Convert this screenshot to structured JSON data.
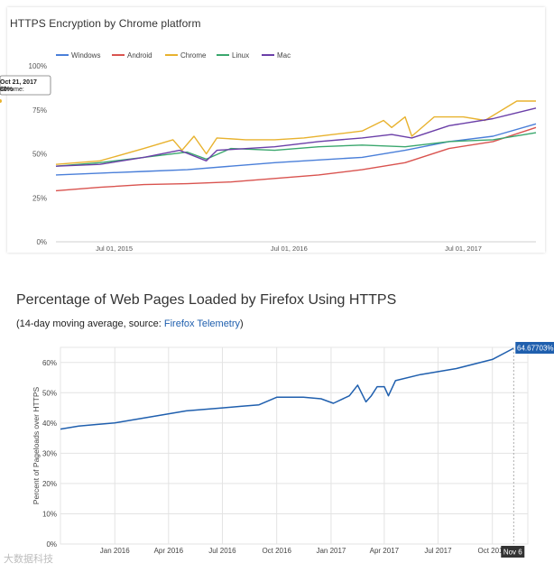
{
  "chart_data": [
    {
      "type": "line",
      "title": "HTTPS Encryption by Chrome platform",
      "xlabel": "",
      "ylabel": "",
      "x_tick_labels": [
        "Jul 01, 2015",
        "Jul 01, 2016",
        "Jul 01, 2017"
      ],
      "y_tick_labels": [
        "0%",
        "25%",
        "50%",
        "75%",
        "100%"
      ],
      "ylim": [
        0,
        100
      ],
      "grid": false,
      "legend_position": "top-left",
      "tooltip": {
        "date": "Oct 21, 2017",
        "series": "Chrome",
        "label": "Chrome:",
        "value": "80%"
      },
      "series": [
        {
          "name": "Windows",
          "color": "#4a7fd9",
          "points": [
            [
              "2015-03-01",
              38
            ],
            [
              "2015-06-01",
              39
            ],
            [
              "2015-09-01",
              40
            ],
            [
              "2015-12-01",
              41
            ],
            [
              "2016-03-01",
              43
            ],
            [
              "2016-06-01",
              45
            ],
            [
              "2016-09-01",
              46.5
            ],
            [
              "2016-12-01",
              48
            ],
            [
              "2017-03-01",
              52
            ],
            [
              "2017-06-01",
              57
            ],
            [
              "2017-09-01",
              60
            ],
            [
              "2017-11-30",
              67
            ]
          ]
        },
        {
          "name": "Android",
          "color": "#d9534f",
          "points": [
            [
              "2015-03-01",
              29
            ],
            [
              "2015-06-01",
              31
            ],
            [
              "2015-09-01",
              32.5
            ],
            [
              "2015-12-01",
              33
            ],
            [
              "2016-03-01",
              34
            ],
            [
              "2016-06-01",
              36
            ],
            [
              "2016-09-01",
              38
            ],
            [
              "2016-12-01",
              41
            ],
            [
              "2017-03-01",
              45
            ],
            [
              "2017-06-01",
              53
            ],
            [
              "2017-09-01",
              57
            ],
            [
              "2017-11-30",
              65
            ]
          ]
        },
        {
          "name": "Chrome",
          "color": "#e8b22e",
          "points": [
            [
              "2015-03-01",
              44
            ],
            [
              "2015-06-01",
              46
            ],
            [
              "2015-09-01",
              53
            ],
            [
              "2015-11-01",
              58
            ],
            [
              "2015-11-20",
              52
            ],
            [
              "2015-12-15",
              60
            ],
            [
              "2016-01-10",
              50
            ],
            [
              "2016-02-01",
              59
            ],
            [
              "2016-04-01",
              58
            ],
            [
              "2016-06-01",
              58
            ],
            [
              "2016-08-01",
              59
            ],
            [
              "2016-10-01",
              61
            ],
            [
              "2016-12-01",
              63
            ],
            [
              "2017-01-15",
              69
            ],
            [
              "2017-02-01",
              65
            ],
            [
              "2017-03-01",
              71
            ],
            [
              "2017-03-15",
              60
            ],
            [
              "2017-05-01",
              71
            ],
            [
              "2017-07-01",
              71
            ],
            [
              "2017-08-15",
              69
            ],
            [
              "2017-10-21",
              80
            ],
            [
              "2017-11-30",
              80
            ]
          ]
        },
        {
          "name": "Linux",
          "color": "#3aa76d",
          "points": [
            [
              "2015-03-01",
              43
            ],
            [
              "2015-06-01",
              45
            ],
            [
              "2015-09-01",
              48
            ],
            [
              "2015-12-01",
              51
            ],
            [
              "2016-01-10",
              47
            ],
            [
              "2016-03-01",
              53
            ],
            [
              "2016-06-01",
              52
            ],
            [
              "2016-09-01",
              54
            ],
            [
              "2016-12-01",
              55
            ],
            [
              "2017-03-01",
              54
            ],
            [
              "2017-06-01",
              57
            ],
            [
              "2017-09-01",
              58
            ],
            [
              "2017-11-30",
              62
            ]
          ]
        },
        {
          "name": "Mac",
          "color": "#6b3fa8",
          "points": [
            [
              "2015-03-01",
              43
            ],
            [
              "2015-06-01",
              44
            ],
            [
              "2015-09-01",
              48
            ],
            [
              "2015-11-15",
              52
            ],
            [
              "2016-01-10",
              46
            ],
            [
              "2016-02-01",
              52
            ],
            [
              "2016-06-01",
              54
            ],
            [
              "2016-09-01",
              57
            ],
            [
              "2016-12-01",
              59
            ],
            [
              "2017-02-01",
              61
            ],
            [
              "2017-03-15",
              59
            ],
            [
              "2017-06-01",
              66
            ],
            [
              "2017-09-01",
              70
            ],
            [
              "2017-11-30",
              76
            ]
          ]
        }
      ]
    },
    {
      "type": "line",
      "title": "Percentage of Web Pages Loaded by Firefox Using HTTPS",
      "subtitle": {
        "prefix": "(14-day moving average, source: ",
        "link": "Firefox Telemetry",
        "suffix": ")"
      },
      "xlabel": "",
      "ylabel": "Percent of Pageloads over HTTPS",
      "x_tick_labels": [
        "Jan 2016",
        "Apr 2016",
        "Jul 2016",
        "Oct 2016",
        "Jan 2017",
        "Apr 2017",
        "Jul 2017",
        "Oct 2017"
      ],
      "y_tick_labels": [
        "0%",
        "10%",
        "20%",
        "30%",
        "40%",
        "50%",
        "60%"
      ],
      "ylim": [
        0,
        65
      ],
      "grid": true,
      "last_point": {
        "date_label": "Nov 6",
        "value_label": "64.67703%"
      },
      "series": [
        {
          "name": "",
          "color": "#1f5fae",
          "points": [
            [
              "2015-10-01",
              38
            ],
            [
              "2015-11-01",
              39
            ],
            [
              "2015-12-01",
              39.5
            ],
            [
              "2016-01-01",
              40
            ],
            [
              "2016-03-01",
              42
            ],
            [
              "2016-05-01",
              44
            ],
            [
              "2016-07-01",
              45
            ],
            [
              "2016-08-01",
              45.5
            ],
            [
              "2016-09-01",
              46
            ],
            [
              "2016-10-01",
              48.5
            ],
            [
              "2016-11-15",
              48.5
            ],
            [
              "2016-12-15",
              48
            ],
            [
              "2017-01-05",
              46.5
            ],
            [
              "2017-02-01",
              49
            ],
            [
              "2017-02-15",
              52.5
            ],
            [
              "2017-03-01",
              47
            ],
            [
              "2017-03-10",
              49
            ],
            [
              "2017-03-20",
              52
            ],
            [
              "2017-04-01",
              52
            ],
            [
              "2017-04-08",
              49
            ],
            [
              "2017-04-20",
              54
            ],
            [
              "2017-06-01",
              56
            ],
            [
              "2017-08-01",
              58
            ],
            [
              "2017-10-01",
              61
            ],
            [
              "2017-11-06",
              64.7
            ]
          ]
        }
      ]
    }
  ],
  "watermark": "大数据科技"
}
